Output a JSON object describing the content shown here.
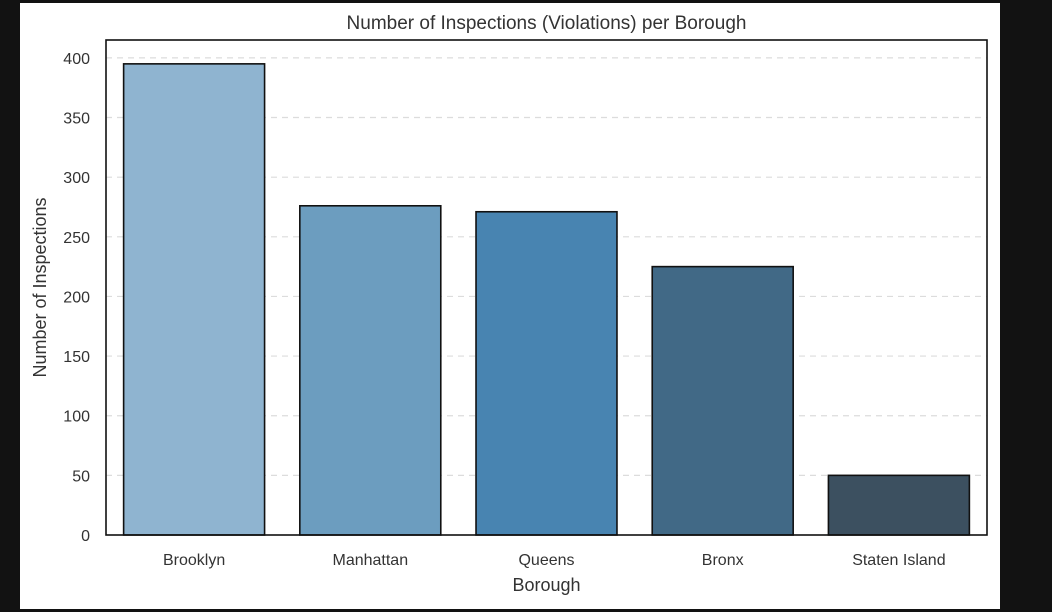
{
  "chart_data": {
    "type": "bar",
    "title": "Number of Inspections (Violations) per Borough",
    "xlabel": "Borough",
    "ylabel": "Number of Inspections",
    "categories": [
      "Brooklyn",
      "Manhattan",
      "Queens",
      "Bronx",
      "Staten Island"
    ],
    "values": [
      395,
      276,
      271,
      225,
      50
    ],
    "colors": [
      "#8fb4d0",
      "#6c9dbf",
      "#4884b1",
      "#416986",
      "#3c5060"
    ],
    "ylim": [
      0,
      415
    ],
    "yticks": [
      0,
      50,
      100,
      150,
      200,
      250,
      300,
      350,
      400
    ],
    "grid": true,
    "grid_style": "dashed horizontal"
  }
}
